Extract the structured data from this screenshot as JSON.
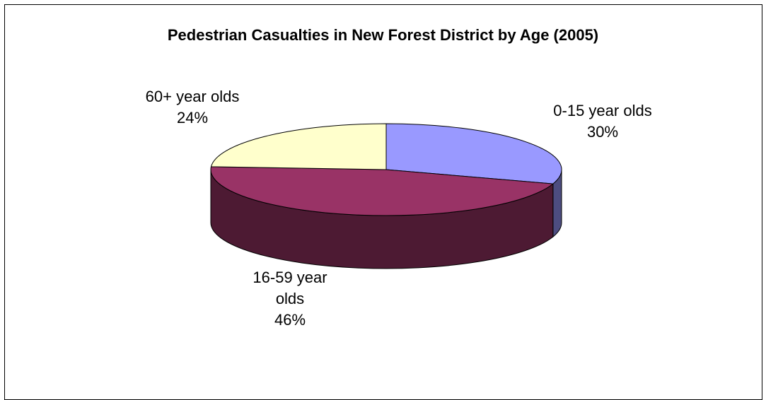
{
  "chart_data": {
    "type": "pie",
    "title": "Pedestrian Casualties in New Forest District by Age (2005)",
    "three_d": true,
    "slices": [
      {
        "label": "0-15 year olds",
        "percent_label": "30%",
        "value": 30,
        "color": "#9999ff",
        "side_color": "#4d4d80"
      },
      {
        "label": "16-59 year olds",
        "label_lines": [
          "16-59 year",
          "olds"
        ],
        "percent_label": "46%",
        "value": 46,
        "color": "#993366",
        "side_color": "#4d1a33"
      },
      {
        "label": "60+ year olds",
        "percent_label": "24%",
        "value": 24,
        "color": "#ffffcc",
        "side_color": "#808066"
      }
    ]
  }
}
